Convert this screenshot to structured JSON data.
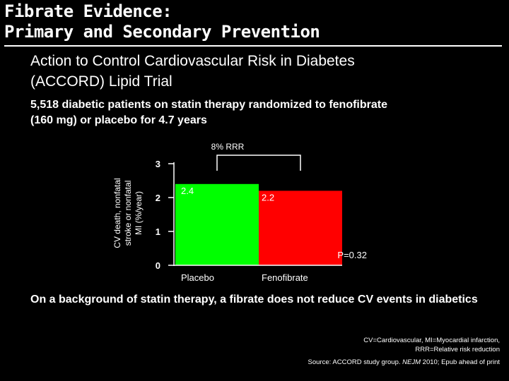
{
  "slide": {
    "title_line1": "Fibrate Evidence:",
    "title_line2": "Primary and Secondary Prevention",
    "subtitle_line1": "Action to Control Cardiovascular Risk in Diabetes",
    "subtitle_line2": "(ACCORD) Lipid Trial",
    "intro_line1": "5,518 diabetic patients on statin therapy randomized to fenofibrate",
    "intro_line2": "(160 mg) or placebo for 4.7 years",
    "conclusion": "On a background of statin therapy, a fibrate does not reduce CV events in diabetics",
    "abbrev_line1": "CV=Cardiovascular, MI=Myocardial infarction,",
    "abbrev_line2": "RRR=Relative risk reduction",
    "source_prefix": "Source: ACCORD study group. ",
    "source_journal": "NEJM",
    "source_suffix": " 2010; Epub ahead of print"
  },
  "chart_data": {
    "type": "bar",
    "categories": [
      "Placebo",
      "Fenofibrate"
    ],
    "values": [
      2.4,
      2.2
    ],
    "value_labels": [
      "2.4",
      "2.2"
    ],
    "colors": [
      "#00ff00",
      "#ff0000"
    ],
    "ylabel_lines": [
      "CV death, nonfatal",
      "stroke or nonfatal",
      "MI (%/year)"
    ],
    "ylim": [
      0,
      3
    ],
    "yticks": [
      0,
      1,
      2,
      3
    ],
    "bracket_label": "8% RRR",
    "p_value": "P=0.32",
    "grid": false
  }
}
